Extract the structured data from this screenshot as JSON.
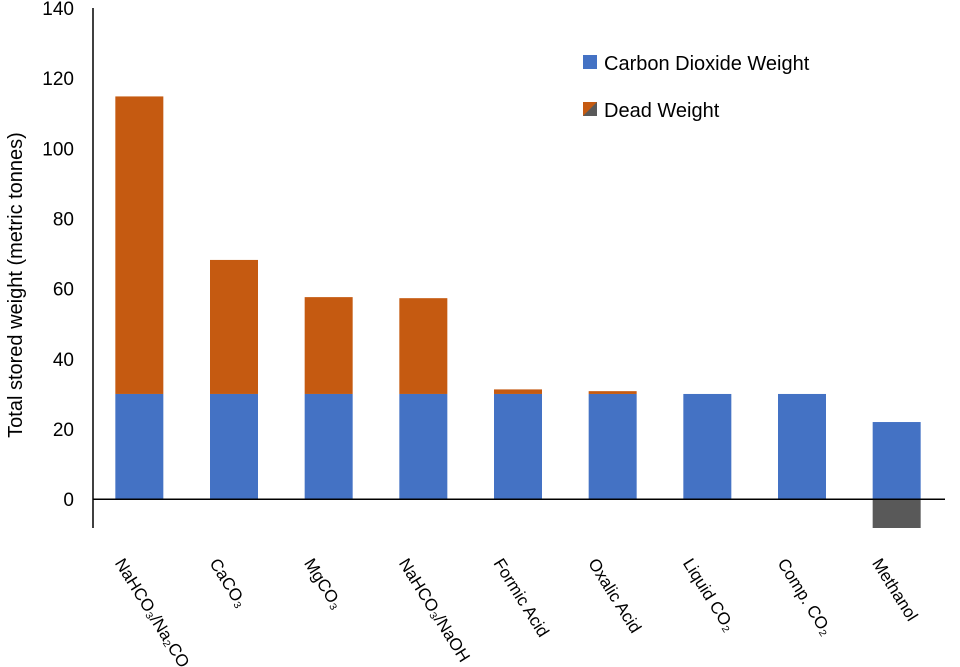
{
  "chart_data": {
    "type": "bar",
    "stacked": true,
    "categories": [
      "NaHCO₃/Na₂CO₃",
      "CaCO₃",
      "MgCO₃",
      "NaHCO₃/NaOH",
      "Formic Acid",
      "Oxalic Acid",
      "Liquid CO₂",
      "Comp. CO₂",
      "Methanol"
    ],
    "series": [
      {
        "name": "Carbon Dioxide Weight",
        "color": "#4472C4",
        "values": [
          30,
          30,
          30,
          30,
          30,
          30,
          30,
          30,
          22
        ]
      },
      {
        "name": "Dead Weight",
        "color": "#C55A11",
        "negative_color": "#595959",
        "values": [
          84.8,
          38.2,
          27.6,
          27.3,
          1.3,
          0.8,
          0,
          0,
          -8.2
        ]
      }
    ],
    "xlabel": "",
    "ylabel": "Total stored weight (metric tonnes)",
    "ylim": [
      -8.2,
      140
    ],
    "yticks": [
      0,
      20,
      40,
      60,
      80,
      100,
      120,
      140
    ],
    "grid": false,
    "legend_position": "top-right"
  }
}
